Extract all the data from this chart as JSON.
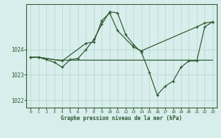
{
  "title": "Graphe pression niveau de la mer (hPa)",
  "background_color": "#d8eeed",
  "grid_color": "#b0d4d0",
  "line_color": "#2d5a2d",
  "ylim": [
    1021.7,
    1025.8
  ],
  "yticks": [
    1022,
    1023,
    1024
  ],
  "xlim": [
    -0.5,
    23.5
  ],
  "xticks": [
    0,
    1,
    2,
    3,
    4,
    5,
    6,
    7,
    8,
    9,
    10,
    11,
    12,
    13,
    14,
    15,
    16,
    17,
    18,
    19,
    20,
    21,
    22,
    23
  ],
  "series1": [
    1023.7,
    1023.7,
    1023.65,
    1023.6,
    1023.58,
    1023.58,
    1023.58,
    1023.58,
    1023.58,
    1023.58,
    1023.58,
    1023.58,
    1023.58,
    1023.58,
    1023.58,
    1023.58,
    1023.58,
    1023.58,
    1023.58,
    1023.58,
    1023.58,
    1023.58,
    1023.58,
    1023.58
  ],
  "series2_x": [
    0,
    1,
    4,
    7,
    8,
    9,
    10,
    11,
    13,
    14,
    21,
    22,
    23
  ],
  "series2_y": [
    1023.7,
    1023.7,
    1023.55,
    1024.25,
    1024.3,
    1025.15,
    1025.45,
    1024.75,
    1024.1,
    1023.95,
    1024.9,
    1025.05,
    1025.1
  ],
  "series3": [
    1023.7,
    1023.7,
    1023.6,
    1023.5,
    1023.3,
    1023.6,
    1023.65,
    1024.0,
    1024.4,
    1025.0,
    1025.5,
    1025.45,
    1024.6,
    1024.2,
    1023.9,
    1023.1,
    1022.2,
    1022.55,
    1022.75,
    1023.3,
    1023.55,
    1023.55,
    1024.9,
    1025.1
  ]
}
